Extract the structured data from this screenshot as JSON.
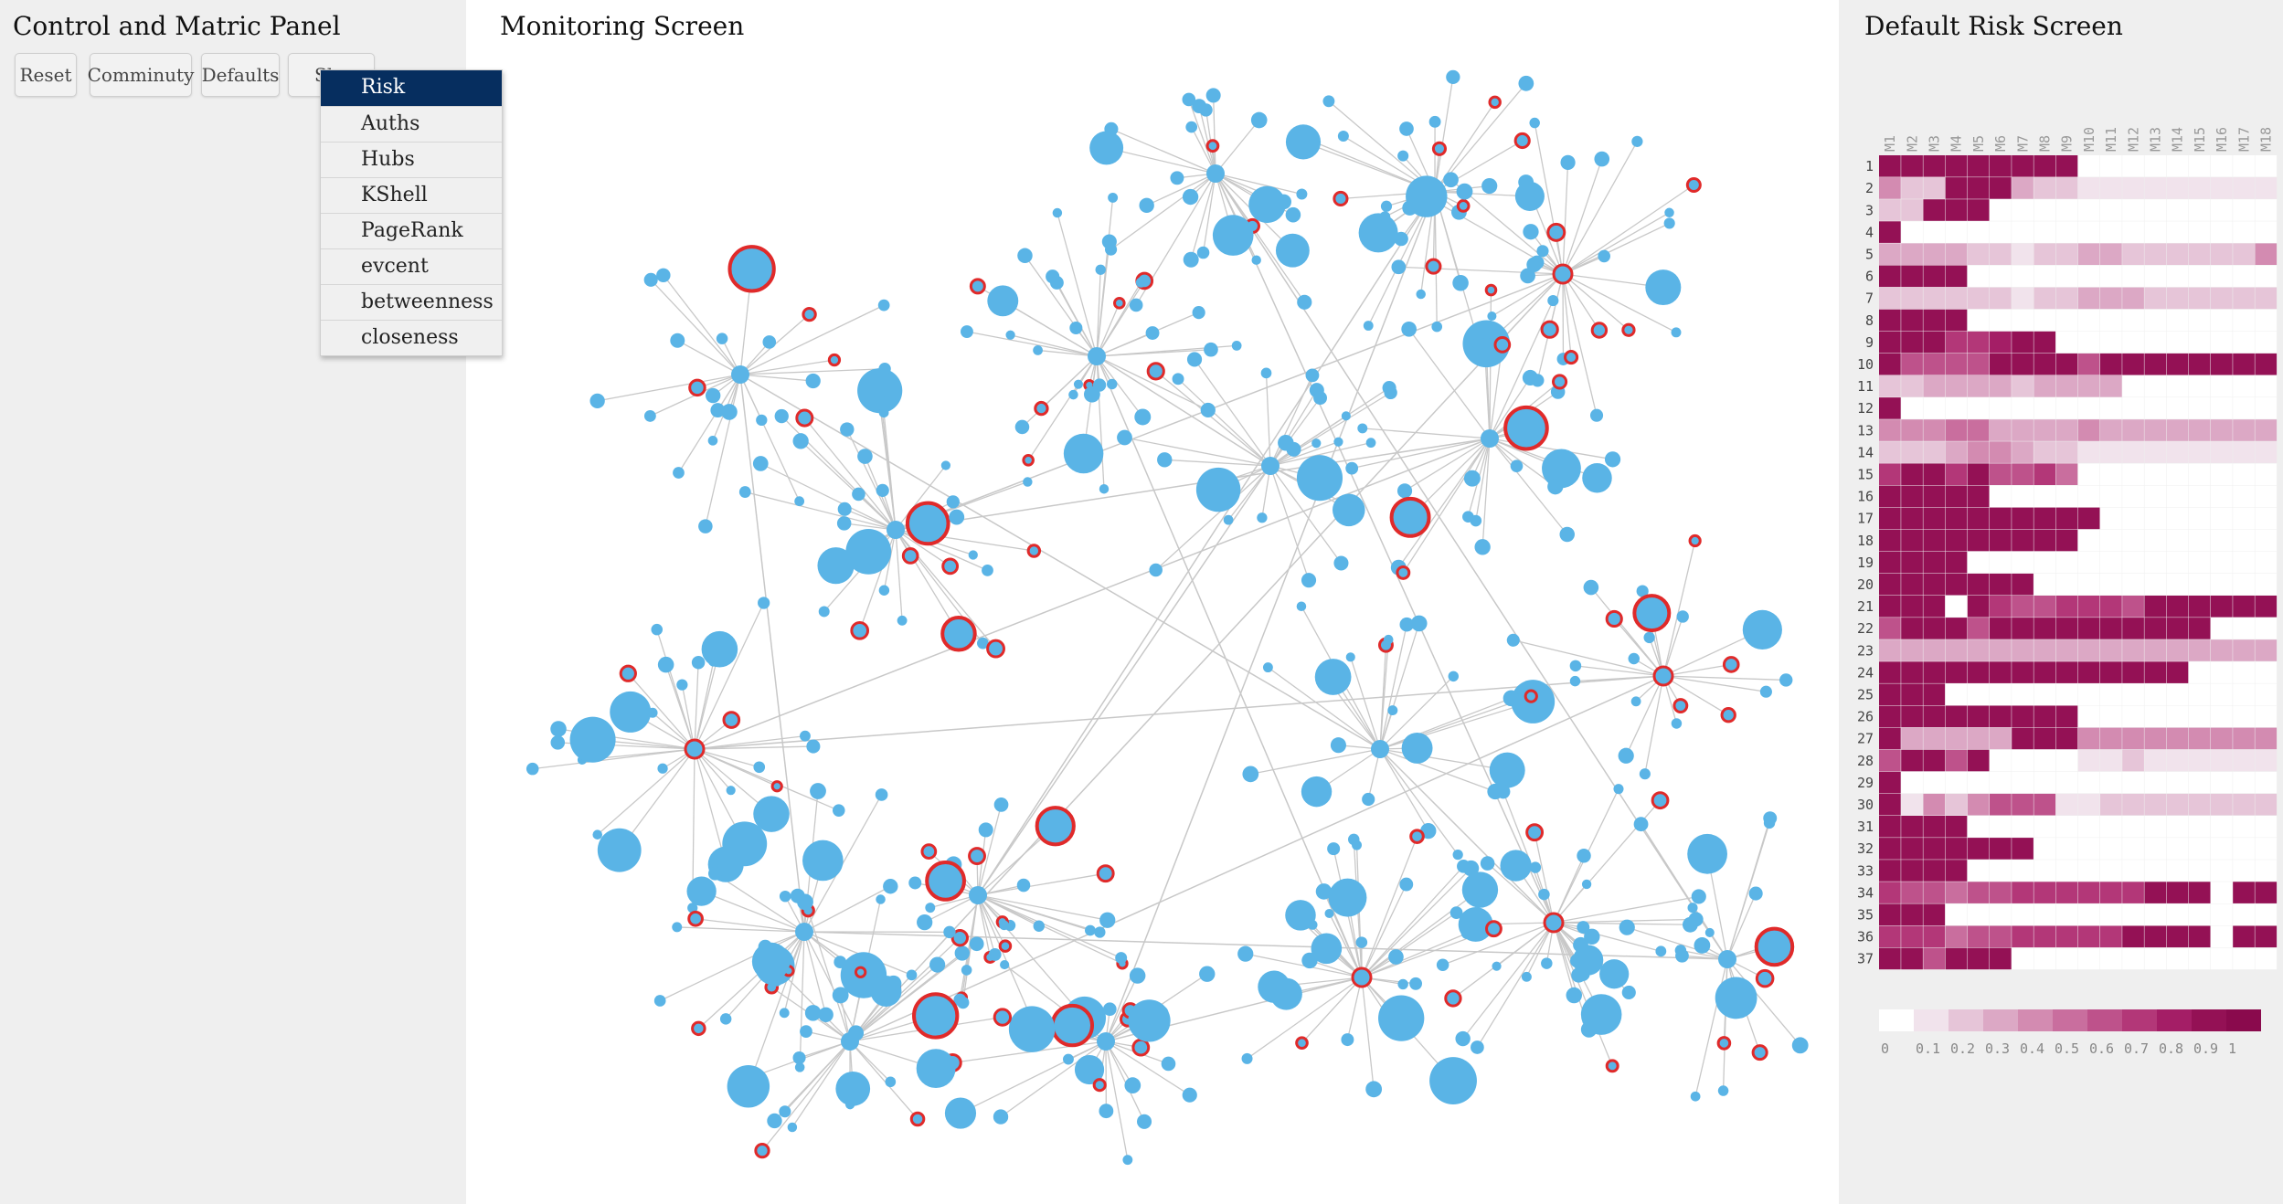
{
  "left_panel": {
    "title": "Control and Matric Panel",
    "buttons": [
      {
        "label": "Reset"
      },
      {
        "label": "Comminuty"
      },
      {
        "label": "Defaults"
      },
      {
        "label": "Sh"
      }
    ],
    "dropdown": {
      "selected": "Risk",
      "options": [
        "Risk",
        "Auths",
        "Hubs",
        "KShell",
        "PageRank",
        "evcent",
        "betweenness",
        "closeness"
      ]
    }
  },
  "center_panel": {
    "title": "Monitoring Screen",
    "node_color": "#5ab4e6",
    "highlight_stroke": "#e02a2a",
    "edge_color": "#c8c8c8"
  },
  "right_panel": {
    "title": "Default Risk Screen",
    "heatmap": {
      "columns": [
        "M1",
        "M2",
        "M3",
        "M4",
        "M5",
        "M6",
        "M7",
        "M8",
        "M9",
        "M10",
        "M11",
        "M12",
        "M13",
        "M14",
        "M15",
        "M16",
        "M17",
        "M18"
      ],
      "rows": [
        "1",
        "2",
        "3",
        "4",
        "5",
        "6",
        "7",
        "8",
        "9",
        "10",
        "11",
        "12",
        "13",
        "14",
        "15",
        "16",
        "17",
        "18",
        "19",
        "20",
        "21",
        "22",
        "23",
        "24",
        "25",
        "26",
        "27",
        "28",
        "29",
        "30",
        "31",
        "32",
        "33",
        "34",
        "35",
        "36",
        "37"
      ],
      "values": [
        [
          0.9,
          0.9,
          0.9,
          0.9,
          0.9,
          0.9,
          0.9,
          0.9,
          0.9,
          null,
          null,
          null,
          null,
          null,
          null,
          null,
          null,
          null
        ],
        [
          0.4,
          0.2,
          0.2,
          0.9,
          0.9,
          0.9,
          0.3,
          0.2,
          0.2,
          0.1,
          0.1,
          0.1,
          0.1,
          0.1,
          0.1,
          0.1,
          0.1,
          0.1
        ],
        [
          0.2,
          0.2,
          0.9,
          0.9,
          0.9,
          null,
          null,
          null,
          null,
          null,
          null,
          null,
          null,
          null,
          null,
          null,
          null,
          null
        ],
        [
          0.9,
          null,
          null,
          null,
          null,
          null,
          null,
          null,
          null,
          null,
          null,
          null,
          null,
          null,
          null,
          null,
          null,
          null
        ],
        [
          0.3,
          0.3,
          0.3,
          0.3,
          0.2,
          0.2,
          0.1,
          0.2,
          0.2,
          0.3,
          0.3,
          0.2,
          0.2,
          0.2,
          0.2,
          0.2,
          0.2,
          0.4
        ],
        [
          0.9,
          0.9,
          0.9,
          0.9,
          null,
          null,
          null,
          null,
          null,
          null,
          null,
          null,
          null,
          null,
          null,
          null,
          null,
          null
        ],
        [
          0.2,
          0.2,
          0.2,
          0.2,
          0.2,
          0.2,
          0.1,
          0.2,
          0.2,
          0.3,
          0.3,
          0.3,
          0.2,
          0.2,
          0.2,
          0.2,
          0.2,
          0.2
        ],
        [
          0.9,
          0.9,
          0.9,
          0.9,
          null,
          null,
          null,
          null,
          null,
          null,
          null,
          null,
          null,
          null,
          null,
          null,
          null,
          null
        ],
        [
          0.9,
          0.9,
          0.9,
          0.7,
          0.7,
          0.8,
          0.9,
          0.9,
          null,
          null,
          null,
          null,
          null,
          null,
          null,
          null,
          null,
          null
        ],
        [
          0.9,
          0.6,
          0.6,
          0.6,
          0.6,
          0.9,
          0.9,
          0.9,
          0.9,
          0.6,
          0.9,
          0.9,
          0.9,
          0.9,
          0.9,
          0.9,
          0.9,
          0.9
        ],
        [
          0.2,
          0.2,
          0.3,
          0.3,
          0.3,
          0.3,
          0.2,
          0.3,
          0.3,
          0.3,
          0.3,
          null,
          null,
          null,
          null,
          null,
          null,
          null
        ],
        [
          0.9,
          null,
          null,
          null,
          null,
          null,
          null,
          null,
          null,
          null,
          null,
          null,
          null,
          null,
          null,
          null,
          null,
          null
        ],
        [
          0.4,
          0.4,
          0.4,
          0.5,
          0.5,
          0.3,
          0.3,
          0.3,
          0.3,
          0.4,
          0.3,
          0.3,
          0.3,
          0.3,
          0.3,
          0.3,
          0.3,
          0.3
        ],
        [
          0.2,
          0.2,
          0.2,
          0.3,
          0.4,
          0.4,
          0.3,
          0.2,
          0.2,
          0.1,
          0.1,
          0.1,
          0.1,
          0.1,
          0.1,
          0.1,
          0.1,
          0.1
        ],
        [
          0.7,
          0.9,
          0.9,
          0.7,
          0.9,
          0.6,
          0.6,
          0.7,
          0.5,
          null,
          null,
          null,
          null,
          null,
          null,
          null,
          null,
          null
        ],
        [
          0.9,
          0.9,
          0.9,
          0.9,
          0.9,
          null,
          null,
          null,
          null,
          null,
          null,
          null,
          null,
          null,
          null,
          null,
          null,
          null
        ],
        [
          0.9,
          0.9,
          0.9,
          0.9,
          0.9,
          0.9,
          0.9,
          0.9,
          0.9,
          0.9,
          null,
          null,
          null,
          null,
          null,
          null,
          null,
          null
        ],
        [
          0.9,
          0.9,
          0.9,
          0.9,
          0.9,
          0.9,
          0.9,
          0.9,
          0.9,
          null,
          null,
          null,
          null,
          null,
          null,
          null,
          null,
          null
        ],
        [
          0.9,
          0.9,
          0.9,
          0.9,
          null,
          null,
          null,
          null,
          null,
          null,
          null,
          null,
          null,
          null,
          null,
          null,
          null,
          null
        ],
        [
          0.9,
          0.9,
          0.9,
          0.9,
          0.9,
          0.9,
          0.9,
          null,
          null,
          null,
          null,
          null,
          null,
          null,
          null,
          null,
          null,
          null
        ],
        [
          0.9,
          0.9,
          0.9,
          null,
          0.9,
          0.7,
          0.6,
          0.6,
          0.7,
          0.7,
          0.7,
          0.6,
          0.9,
          0.9,
          0.9,
          0.9,
          0.9,
          0.9
        ],
        [
          0.6,
          0.9,
          0.9,
          0.9,
          0.6,
          0.9,
          0.9,
          0.9,
          0.9,
          0.9,
          0.9,
          0.9,
          0.9,
          0.9,
          0.9,
          null,
          null,
          null
        ],
        [
          0.3,
          0.3,
          0.3,
          0.3,
          0.3,
          0.3,
          0.3,
          0.3,
          0.3,
          0.3,
          0.3,
          0.3,
          0.3,
          0.3,
          0.3,
          0.3,
          0.3,
          0.3
        ],
        [
          0.9,
          0.9,
          0.9,
          0.9,
          0.9,
          0.9,
          0.9,
          0.9,
          0.9,
          0.9,
          0.9,
          0.9,
          0.9,
          0.9,
          null,
          null,
          null,
          null
        ],
        [
          0.9,
          0.9,
          0.9,
          null,
          null,
          null,
          null,
          null,
          null,
          null,
          null,
          null,
          null,
          null,
          null,
          null,
          null,
          null
        ],
        [
          0.9,
          0.9,
          0.9,
          0.9,
          0.9,
          0.9,
          0.9,
          0.9,
          0.9,
          null,
          null,
          null,
          null,
          null,
          null,
          null,
          null,
          null
        ],
        [
          0.9,
          0.3,
          0.3,
          0.3,
          0.3,
          0.3,
          0.9,
          0.9,
          0.9,
          0.4,
          0.4,
          0.4,
          0.4,
          0.4,
          0.4,
          0.4,
          0.4,
          0.4
        ],
        [
          0.6,
          0.9,
          0.9,
          0.6,
          0.9,
          null,
          null,
          null,
          null,
          0.1,
          0.1,
          0.2,
          0.1,
          0.1,
          0.1,
          0.1,
          0.1,
          0.1
        ],
        [
          0.9,
          null,
          null,
          null,
          null,
          null,
          null,
          null,
          null,
          null,
          null,
          null,
          null,
          null,
          null,
          null,
          null,
          null
        ],
        [
          0.9,
          0.1,
          0.4,
          0.2,
          0.4,
          0.6,
          0.6,
          0.6,
          0.1,
          0.1,
          0.2,
          0.2,
          0.2,
          0.2,
          0.2,
          0.2,
          0.2,
          0.2
        ],
        [
          0.9,
          0.9,
          0.9,
          0.9,
          null,
          null,
          null,
          null,
          null,
          null,
          null,
          null,
          null,
          null,
          null,
          null,
          null,
          null
        ],
        [
          0.9,
          0.9,
          0.9,
          0.9,
          0.9,
          0.9,
          0.9,
          null,
          null,
          null,
          null,
          null,
          null,
          null,
          null,
          null,
          null,
          null
        ],
        [
          0.9,
          0.9,
          0.9,
          0.9,
          null,
          null,
          null,
          null,
          null,
          null,
          null,
          null,
          null,
          null,
          null,
          null,
          null,
          null
        ],
        [
          0.7,
          0.6,
          0.6,
          0.5,
          0.6,
          0.6,
          0.7,
          0.7,
          0.7,
          0.7,
          0.7,
          0.7,
          0.9,
          0.9,
          0.9,
          null,
          0.9,
          0.9
        ],
        [
          0.9,
          0.9,
          0.9,
          null,
          null,
          null,
          null,
          null,
          null,
          null,
          null,
          null,
          null,
          null,
          null,
          null,
          null,
          null
        ],
        [
          0.7,
          0.7,
          0.7,
          0.5,
          0.6,
          0.6,
          0.7,
          0.7,
          0.7,
          0.7,
          0.7,
          0.9,
          0.9,
          0.9,
          0.9,
          null,
          0.9,
          0.9
        ],
        [
          0.9,
          0.9,
          0.6,
          0.9,
          0.9,
          0.9,
          null,
          null,
          null,
          null,
          null,
          null,
          null,
          null,
          null,
          null,
          null,
          null
        ]
      ],
      "colors": [
        "#ffffff",
        "#f1e3ec",
        "#e6c5d8",
        "#dca8c5",
        "#d38bb1",
        "#c96e9e",
        "#be528b",
        "#b33778",
        "#a41e66",
        "#941155",
        "#8a0a4d"
      ],
      "legend_labels": [
        "0",
        "0.1",
        "0.2",
        "0.3",
        "0.4",
        "0.5",
        "0.6",
        "0.7",
        "0.8",
        "0.9",
        "1"
      ]
    }
  }
}
